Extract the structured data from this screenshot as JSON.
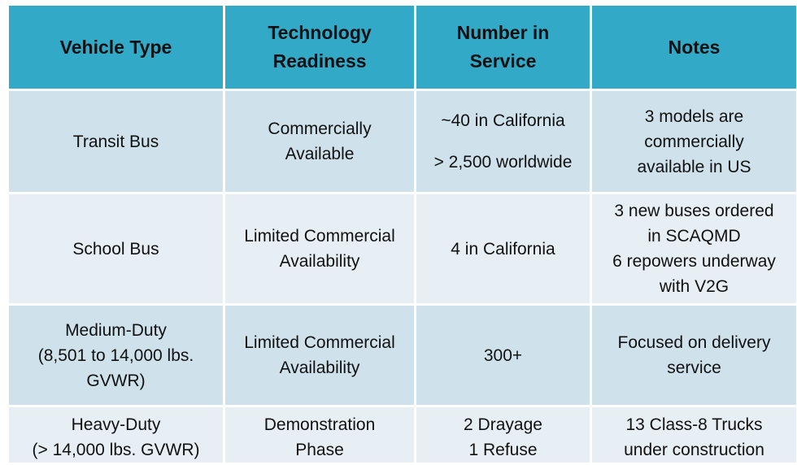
{
  "table": {
    "header": [
      [
        "Vehicle Type"
      ],
      [
        "Technology",
        "Readiness"
      ],
      [
        "Number in",
        "Service"
      ],
      [
        "Notes"
      ]
    ],
    "rows": [
      [
        [
          [
            "Transit Bus"
          ]
        ],
        [
          [
            "Commercially",
            "Available"
          ]
        ],
        [
          [
            "~40 in California"
          ],
          [
            "> 2,500 worldwide"
          ]
        ],
        [
          [
            "3 models are",
            "commercially",
            "available in US"
          ]
        ]
      ],
      [
        [
          [
            "School Bus"
          ]
        ],
        [
          [
            "Limited Commercial",
            "Availability"
          ]
        ],
        [
          [
            "4 in California"
          ]
        ],
        [
          [
            "3 new buses ordered",
            "in SCAQMD",
            "6 repowers underway",
            "with V2G"
          ]
        ]
      ],
      [
        [
          [
            "Medium-Duty",
            "(8,501 to 14,000 lbs.",
            "GVWR)"
          ]
        ],
        [
          [
            "Limited Commercial",
            "Availability"
          ]
        ],
        [
          [
            "300+"
          ]
        ],
        [
          [
            "Focused on delivery",
            "service"
          ]
        ]
      ],
      [
        [
          [
            "Heavy-Duty",
            "(> 14,000 lbs. GVWR)"
          ]
        ],
        [
          [
            "Demonstration",
            "Phase"
          ]
        ],
        [
          [
            "2 Drayage",
            "1 Refuse"
          ]
        ],
        [
          [
            "13 Class-8 Trucks",
            "under construction"
          ]
        ]
      ]
    ]
  }
}
